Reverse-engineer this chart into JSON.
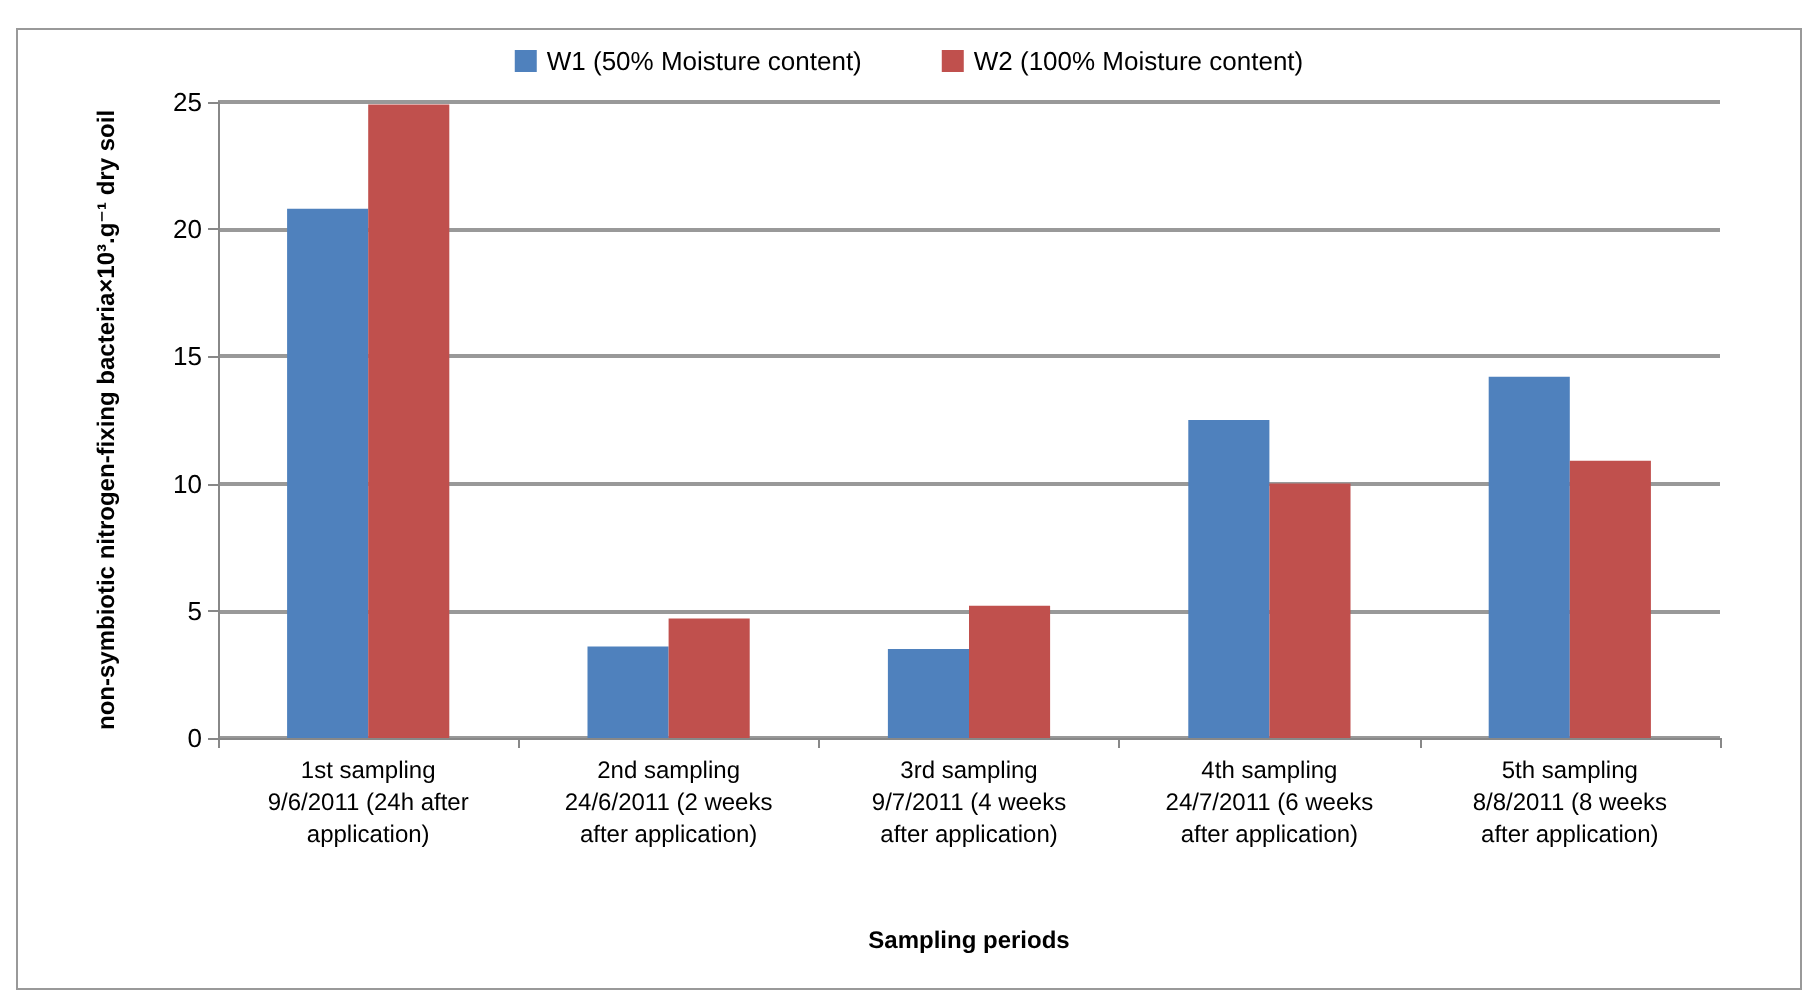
{
  "chart_data": {
    "type": "bar",
    "categories": [
      "1st sampling\n9/6/2011 (24h after\napplication)",
      "2nd sampling\n24/6/2011 (2 weeks\nafter application)",
      "3rd sampling\n9/7/2011 (4 weeks\nafter application)",
      "4th sampling\n24/7/2011 (6 weeks\nafter application)",
      "5th sampling\n8/8/2011 (8 weeks\nafter application)"
    ],
    "series": [
      {
        "name": "W1 (50% Moisture content)",
        "color": "#4f81bd",
        "values": [
          20.8,
          3.6,
          3.5,
          12.5,
          14.2
        ]
      },
      {
        "name": "W2 (100% Moisture content)",
        "color": "#c0504d",
        "values": [
          24.9,
          4.7,
          5.2,
          10.0,
          10.9
        ]
      }
    ],
    "xlabel": "Sampling periods",
    "ylabel": "non-symbiotic nitrogen-fixing bacteria×10³.g⁻¹ dry soil",
    "ylim": [
      0,
      25
    ],
    "yticks": [
      0,
      5,
      10,
      15,
      20,
      25
    ],
    "grid": "y",
    "legend": "top"
  }
}
